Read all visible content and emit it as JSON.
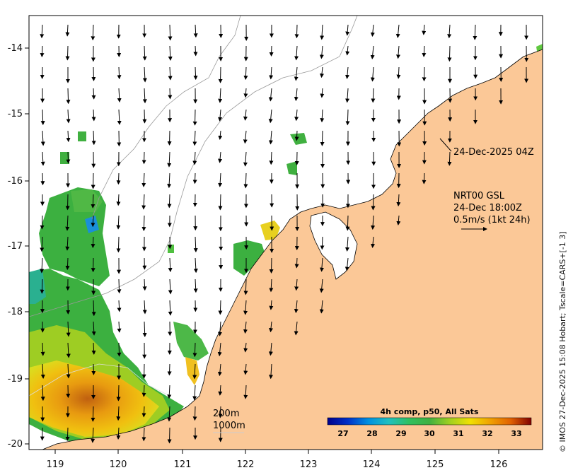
{
  "map": {
    "lon_ticks": [
      "119",
      "120",
      "121",
      "122",
      "123",
      "124",
      "125",
      "126"
    ],
    "lat_ticks": [
      "-14",
      "-15",
      "-16",
      "-17",
      "-18",
      "-19",
      "-20"
    ],
    "land_color": "#fbc897",
    "ocean_color": "#ffffff"
  },
  "annotations": {
    "obs_time": "24-Dec-2025 04Z",
    "model_line1": "NRT00 GSL",
    "model_line2": "24-Dec 18:00Z",
    "model_line3": "0.5m/s (1kt 24h)",
    "contour_200": "200m",
    "contour_1000": "1000m"
  },
  "colorbar": {
    "title": "4h comp, p50, All Sats",
    "ticks": [
      "27",
      "28",
      "29",
      "30",
      "31",
      "32",
      "33"
    ],
    "colors": [
      "#00008b",
      "#0030c8",
      "#0090e0",
      "#20c0c0",
      "#30c060",
      "#40b040",
      "#a0d020",
      "#f0e000",
      "#f0a000",
      "#e06000",
      "#b02000",
      "#800000"
    ]
  },
  "credit": "© IMOS 27-Dec-2025 15:08 Hobart; Tscale=CARS+[-1 3]"
}
